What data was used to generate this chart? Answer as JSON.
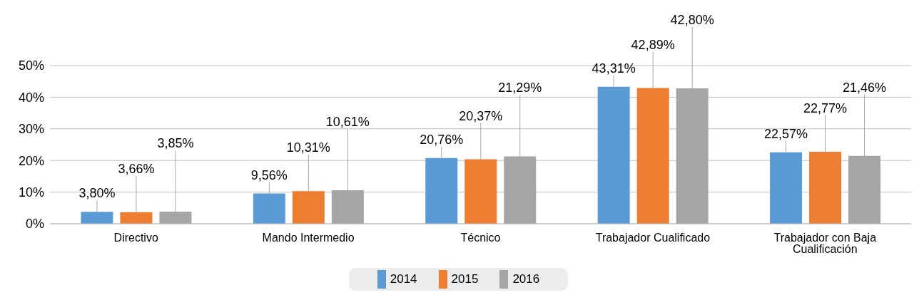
{
  "chart_data": {
    "type": "bar",
    "categories": [
      "Directivo",
      "Mando Intermedio",
      "Técnico",
      "Trabajador Cualificado",
      "Trabajador con Baja Cualificación"
    ],
    "series": [
      {
        "name": "2014",
        "color": "#5b9bd5",
        "values": [
          3.8,
          9.56,
          20.76,
          43.31,
          22.57
        ],
        "value_labels": [
          "3,80%",
          "9,56%",
          "20,76%",
          "43,31%",
          "22,57%"
        ]
      },
      {
        "name": "2015",
        "color": "#ed7d31",
        "values": [
          3.66,
          10.31,
          20.37,
          42.89,
          22.77
        ],
        "value_labels": [
          "3,66%",
          "10,31%",
          "20,37%",
          "42,89%",
          "22,77%"
        ]
      },
      {
        "name": "2016",
        "color": "#a5a5a5",
        "values": [
          3.85,
          10.61,
          21.29,
          42.8,
          21.46
        ],
        "value_labels": [
          "3,85%",
          "10,61%",
          "21,29%",
          "42,80%",
          "21,46%"
        ]
      }
    ],
    "ylim": [
      0,
      50
    ],
    "yticks": [
      {
        "value": 0,
        "label": "0%"
      },
      {
        "value": 10,
        "label": "10%"
      },
      {
        "value": 20,
        "label": "20%"
      },
      {
        "value": 30,
        "label": "30%"
      },
      {
        "value": 40,
        "label": "40%"
      },
      {
        "value": 50,
        "label": "50%"
      }
    ],
    "grid": "y",
    "legend": "bottom"
  }
}
